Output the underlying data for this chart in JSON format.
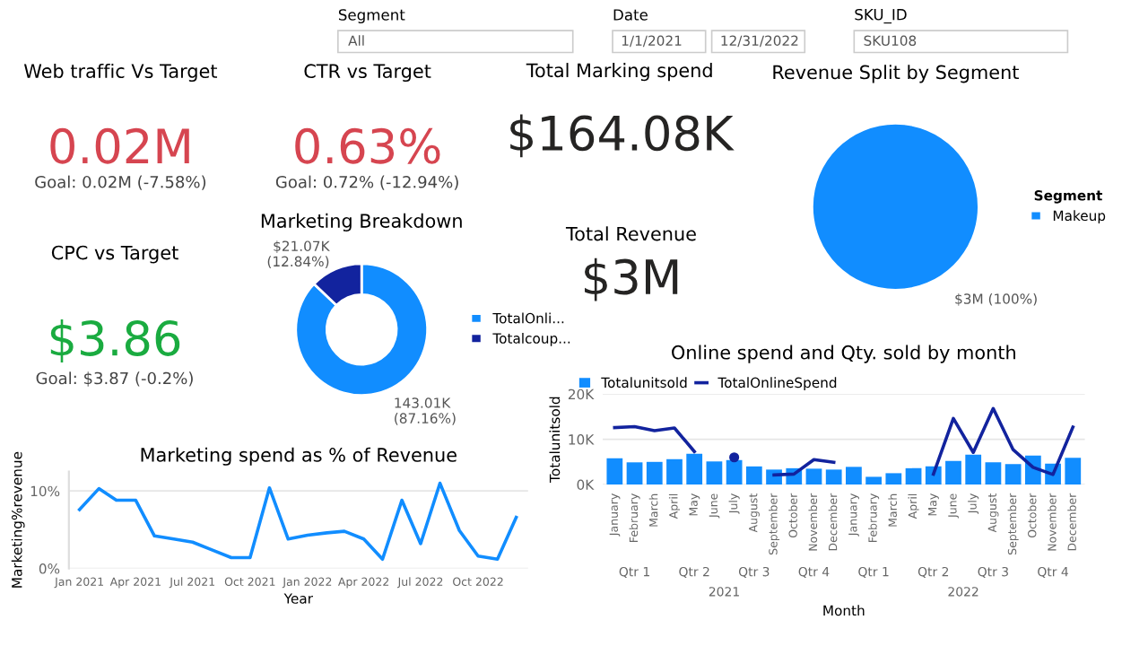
{
  "chart_data": [
    {
      "type": "other",
      "title": "Segment",
      "annotations": [
        "All"
      ]
    },
    {
      "type": "other",
      "title": "Date",
      "annotations": [
        "1/1/2021",
        "12/31/2022"
      ]
    },
    {
      "type": "other",
      "title": "SKU_ID",
      "annotations": [
        "SKU108"
      ]
    },
    {
      "type": "other",
      "title": "Web traffic Vs Target",
      "color": "#d64550",
      "annotations": [
        "0.02M",
        "Goal: 0.02M (-7.58%)"
      ]
    },
    {
      "type": "other",
      "title": "CTR vs Target",
      "color": "#d64550",
      "annotations": [
        "0.63%",
        "Goal: 0.72% (-12.94%)"
      ]
    },
    {
      "type": "other",
      "title": "CPC vs Target",
      "color": "#1aab40",
      "annotations": [
        "$3.86",
        "Goal: $3.87 (-0.2%)"
      ]
    },
    {
      "type": "other",
      "title": "Total Marking spend",
      "color": "#252423",
      "annotations": [
        "$164.08K"
      ]
    },
    {
      "type": "other",
      "title": "Total Revenue",
      "color": "#252423",
      "annotations": [
        "$3M"
      ]
    },
    {
      "type": "pie",
      "title": "Revenue Split by Segment",
      "categories": [
        "Makeup"
      ],
      "values": [
        100
      ],
      "colors": [
        "#118dff"
      ],
      "value_labels": [
        "$3M (100%)"
      ],
      "legend": "right",
      "legend_title": "Segment"
    },
    {
      "type": "donut",
      "title": "Marketing Breakdown",
      "categories": [
        "TotalOnli...",
        "Totalcoup..."
      ],
      "values": [
        87.16,
        12.84
      ],
      "colors": [
        "#118dff",
        "#12239e"
      ],
      "value_labels": [
        "143.01K\n(87.16%)",
        "$21.07K\n(12.84%)"
      ],
      "legend": "right"
    },
    {
      "type": "bar",
      "title": "Online spend and Qty. sold by month",
      "xlabel": "Month",
      "ylabel": "Totalunitsold",
      "categories": [
        "January",
        "February",
        "March",
        "April",
        "May",
        "June",
        "July",
        "August",
        "September",
        "October",
        "November",
        "December",
        "January",
        "February",
        "March",
        "April",
        "May",
        "June",
        "July",
        "August",
        "September",
        "October",
        "November",
        "December"
      ],
      "series": [
        {
          "name": "Totalunitsold",
          "type": "bar",
          "color": "#118dff",
          "values": [
            5.8,
            4.9,
            5.0,
            5.6,
            6.8,
            5.1,
            5.4,
            4.0,
            3.3,
            3.6,
            3.5,
            3.3,
            3.9,
            1.7,
            2.5,
            3.6,
            4.0,
            5.2,
            6.6,
            4.9,
            4.5,
            6.4,
            4.6,
            5.9
          ]
        },
        {
          "name": "TotalOnlineSpend",
          "type": "line",
          "color": "#12239e",
          "values": [
            12.6,
            12.8,
            11.9,
            12.5,
            7.3,
            null,
            6.0,
            null,
            2.1,
            2.3,
            5.5,
            4.9,
            null,
            null,
            null,
            null,
            2.3,
            14.6,
            7.1,
            16.8,
            7.7,
            3.8,
            2.2,
            12.7
          ]
        }
      ],
      "ylim": [
        0,
        20
      ],
      "yticks": [
        {
          "value": 0,
          "label": "0K"
        },
        {
          "value": 10,
          "label": "10K"
        },
        {
          "value": 20,
          "label": "20K"
        }
      ],
      "grid": "y",
      "legend": "top left",
      "annotations": [
        "Qtr 1",
        "Qtr 2",
        "Qtr 3",
        "Qtr 4",
        "Qtr 1",
        "Qtr 2",
        "Qtr 3",
        "Qtr 4",
        "2021",
        "2022"
      ]
    },
    {
      "type": "line",
      "title": "Marketing spend as % of Revenue",
      "xlabel": "Year",
      "ylabel": "Marketing%revenue",
      "x": [
        "2021-01",
        "2021-02",
        "2021-03",
        "2021-04",
        "2021-05",
        "2021-06",
        "2021-07",
        "2021-08",
        "2021-09",
        "2021-10",
        "2021-11",
        "2021-12",
        "2022-01",
        "2022-02",
        "2022-03",
        "2022-04",
        "2022-05",
        "2022-06",
        "2022-07",
        "2022-08",
        "2022-09",
        "2022-10",
        "2022-11",
        "2022-12"
      ],
      "series": [
        {
          "color": "#118dff",
          "values": [
            7.6,
            10.3,
            8.8,
            8.8,
            4.2,
            3.8,
            3.4,
            2.4,
            1.4,
            1.4,
            10.4,
            3.8,
            4.3,
            4.6,
            4.8,
            3.8,
            1.2,
            8.8,
            3.2,
            11.0,
            4.9,
            1.6,
            1.2,
            6.6
          ]
        }
      ],
      "xlim": [
        "2020-12-15",
        "2022-12-20"
      ],
      "xticks": [
        {
          "value": "2021-01",
          "label": "Jan 2021"
        },
        {
          "value": "2021-04",
          "label": "Apr 2021"
        },
        {
          "value": "2021-07",
          "label": "Jul 2021"
        },
        {
          "value": "2021-10",
          "label": "Oct 2021"
        },
        {
          "value": "2022-01",
          "label": "Jan 2022"
        },
        {
          "value": "2022-04",
          "label": "Apr 2022"
        },
        {
          "value": "2022-07",
          "label": "Jul 2022"
        },
        {
          "value": "2022-10",
          "label": "Oct 2022"
        }
      ],
      "ylim": [
        0,
        12.5
      ],
      "yticks": [
        {
          "value": 0,
          "label": "0%"
        },
        {
          "value": 10,
          "label": "10%"
        }
      ],
      "grid": "y"
    }
  ]
}
